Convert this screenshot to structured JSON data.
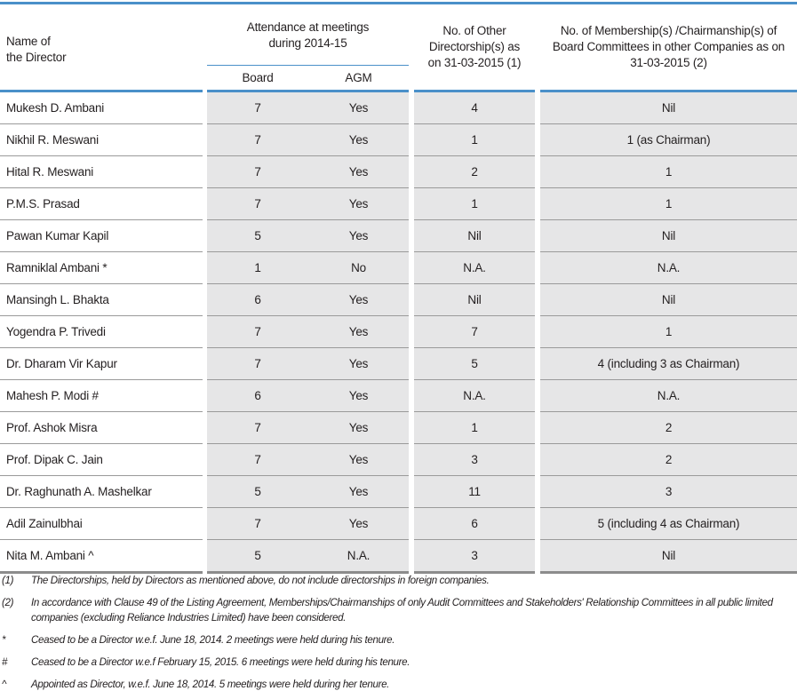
{
  "colors": {
    "accent": "#4a90c9",
    "cell_bg": "#e6e6e7"
  },
  "header": {
    "name": "Name of\nthe Director",
    "attendance": "Attendance at meetings during 2014-15",
    "board": "Board",
    "agm": "AGM",
    "directorships": "No. of Other Directorship(s) as on 31-03-2015 (1)",
    "committees": "No. of Membership(s) /Chairmanship(s) of Board Committees in other Companies as on 31-03-2015 (2)"
  },
  "rows": [
    {
      "name": "Mukesh D. Ambani",
      "board": "7",
      "agm": "Yes",
      "dirs": "4",
      "comm": "Nil"
    },
    {
      "name": "Nikhil R. Meswani",
      "board": "7",
      "agm": "Yes",
      "dirs": "1",
      "comm": "1 (as Chairman)"
    },
    {
      "name": "Hital R. Meswani",
      "board": "7",
      "agm": "Yes",
      "dirs": "2",
      "comm": "1"
    },
    {
      "name": "P.M.S. Prasad",
      "board": "7",
      "agm": "Yes",
      "dirs": "1",
      "comm": "1"
    },
    {
      "name": "Pawan Kumar Kapil",
      "board": "5",
      "agm": "Yes",
      "dirs": "Nil",
      "comm": "Nil"
    },
    {
      "name": "Ramniklal Ambani *",
      "board": "1",
      "agm": "No",
      "dirs": "N.A.",
      "comm": "N.A."
    },
    {
      "name": "Mansingh L. Bhakta",
      "board": "6",
      "agm": "Yes",
      "dirs": "Nil",
      "comm": "Nil"
    },
    {
      "name": "Yogendra P. Trivedi",
      "board": "7",
      "agm": "Yes",
      "dirs": "7",
      "comm": "1"
    },
    {
      "name": "Dr. Dharam Vir Kapur",
      "board": "7",
      "agm": "Yes",
      "dirs": "5",
      "comm": "4 (including 3 as Chairman)"
    },
    {
      "name": "Mahesh P. Modi #",
      "board": "6",
      "agm": "Yes",
      "dirs": "N.A.",
      "comm": "N.A."
    },
    {
      "name": "Prof. Ashok Misra",
      "board": "7",
      "agm": "Yes",
      "dirs": "1",
      "comm": "2"
    },
    {
      "name": "Prof. Dipak C. Jain",
      "board": "7",
      "agm": "Yes",
      "dirs": "3",
      "comm": "2"
    },
    {
      "name": "Dr. Raghunath A. Mashelkar",
      "board": "5",
      "agm": "Yes",
      "dirs": "11",
      "comm": "3"
    },
    {
      "name": "Adil Zainulbhai",
      "board": "7",
      "agm": "Yes",
      "dirs": "6",
      "comm": "5 (including 4 as Chairman)"
    },
    {
      "name": "Nita M. Ambani ^",
      "board": "5",
      "agm": "N.A.",
      "dirs": "3",
      "comm": "Nil"
    }
  ],
  "notes": [
    {
      "mark": "(1)",
      "text": "The Directorships, held by Directors as mentioned above, do not include directorships in foreign companies."
    },
    {
      "mark": "(2)",
      "text": "In accordance with Clause 49 of the Listing Agreement, Memberships/Chairmanships of only Audit Committees and Stakeholders' Relationship Committees in all public limited companies (excluding Reliance Industries Limited) have been considered."
    },
    {
      "mark": "*",
      "text": "Ceased to be a Director w.e.f. June 18, 2014. 2 meetings were held during his tenure."
    },
    {
      "mark": "#",
      "text": " Ceased to be a Director w.e.f February 15, 2015. 6 meetings were held during his tenure."
    },
    {
      "mark": "^",
      "text": "Appointed as Director, w.e.f. June 18, 2014. 5 meetings were held during her tenure."
    }
  ]
}
